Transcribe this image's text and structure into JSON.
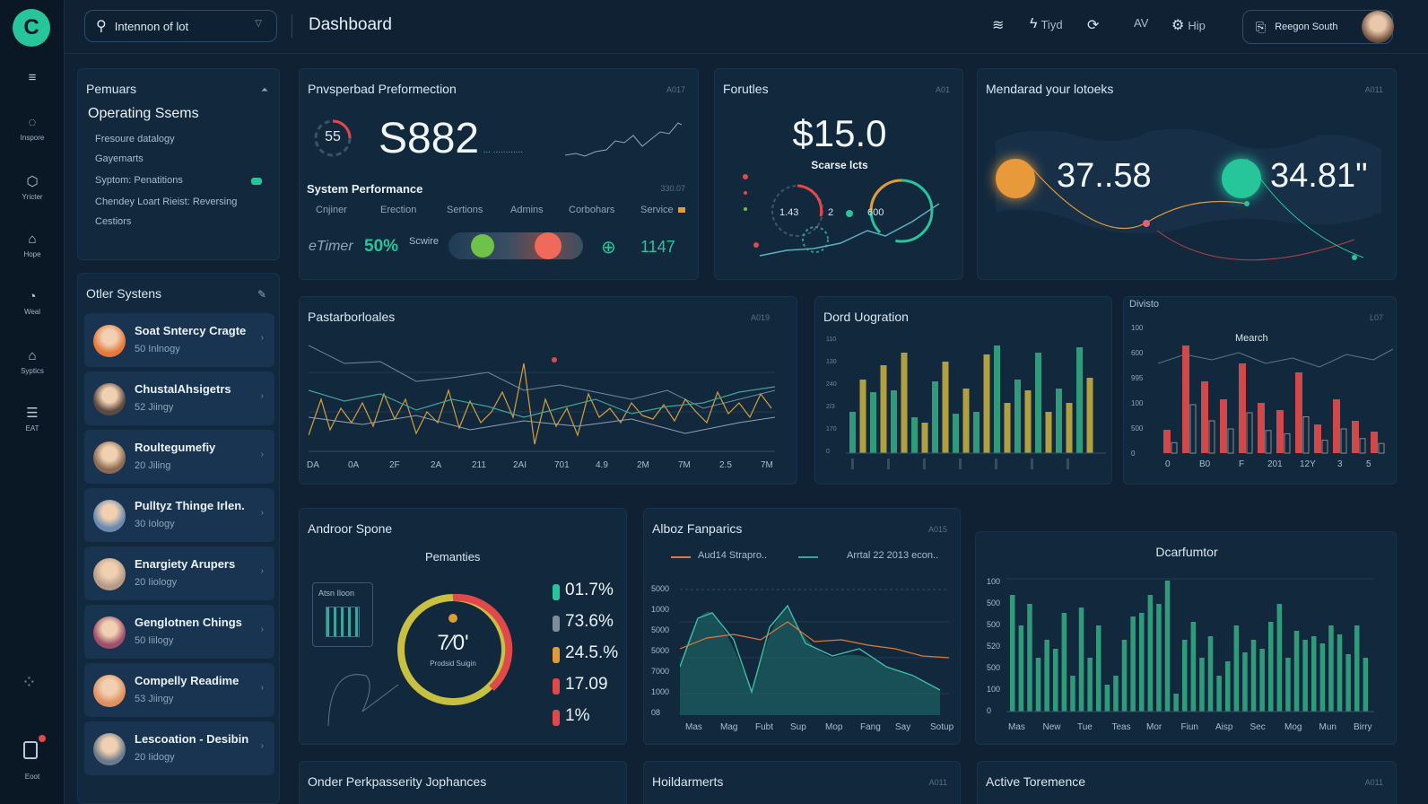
{
  "rail": {
    "logo": "C",
    "items": [
      {
        "icon": "menu-icon",
        "glyph": "≡",
        "label": ""
      },
      {
        "icon": "chat-icon",
        "glyph": "◌",
        "label": "Inspore"
      },
      {
        "icon": "badge-icon",
        "glyph": "⬡",
        "label": "Yricter"
      },
      {
        "icon": "home-icon",
        "glyph": "⌂",
        "label": "Hope"
      },
      {
        "icon": "chart-icon",
        "glyph": "◔",
        "label": "Weal"
      },
      {
        "icon": "bank-icon",
        "glyph": "⌂",
        "label": "Syptics"
      },
      {
        "icon": "list-icon",
        "glyph": "☰",
        "label": "EAT"
      }
    ],
    "grid_icon": "⁘",
    "bottom_label": "Eoot"
  },
  "topbar": {
    "search_value": "Intennon of lot",
    "title": "Dashboard",
    "items": [
      {
        "icon": "filter-icon",
        "glyph": "≋",
        "label": ""
      },
      {
        "icon": "flash-icon",
        "glyph": "ϟ",
        "label": "Tiyd"
      },
      {
        "icon": "sync-icon",
        "glyph": "⟳",
        "label": ""
      },
      {
        "icon": "text-icon",
        "glyph": "",
        "label": "AV"
      },
      {
        "icon": "gear-icon",
        "glyph": "⚙",
        "label": "Hip"
      }
    ],
    "user_name": "Reegon South"
  },
  "permanent": {
    "title": "Pemuars",
    "subtitle": "Operating Ssems",
    "lines": [
      "Fresoure datalogy",
      "Gayemarts",
      "Syptom: Penatitions",
      "Chendey Loart Rieist: Reversing",
      "Cestiors"
    ]
  },
  "other_systems": {
    "title": "Otler Systens",
    "items": [
      {
        "name": "Soat Sntercy Cragte",
        "sub": "50 Inlnogy",
        "color": "#e8783a"
      },
      {
        "name": "ChustalAhsigetrs",
        "sub": "52 Jiingy",
        "color": "#5a4a42"
      },
      {
        "name": "Roultegumefiy",
        "sub": "20 Jiling",
        "color": "#8a6a52"
      },
      {
        "name": "Pulltyz Thinge Irlen.",
        "sub": "30 Iology",
        "color": "#6a8ab0"
      },
      {
        "name": "Enargiety Arupers",
        "sub": "20 Iiology",
        "color": "#b59a88"
      },
      {
        "name": "Genglotnen Chings",
        "sub": "50 Iiilogy",
        "color": "#a0506a"
      },
      {
        "name": "Compelly Readime",
        "sub": "53 Jiingy",
        "color": "#e09060"
      },
      {
        "name": "Lescoation - Desibin",
        "sub": "20 Iidogy",
        "color": "#6a7a8a"
      }
    ]
  },
  "performance": {
    "title": "Pnvsperbad Preformection",
    "tag": "A017",
    "ring_value": "55",
    "big_value": "S882",
    "big_suffix": "... ............",
    "sub_title": "System Performance",
    "sub_tag": "330.07",
    "tabs": [
      "Cnjiner",
      "Erection",
      "Sertions",
      "Admins",
      "Corbohars",
      "Service"
    ],
    "timer_label": "eTimer",
    "timer_value": "50%",
    "scwire_label": "Scwire",
    "count": "1147"
  },
  "forutles": {
    "title": "Forutles",
    "tag": "A01",
    "value": "$15.0",
    "sub": "Scarse lcts",
    "n1": "1.43",
    "n2": "2",
    "n3": "600"
  },
  "map": {
    "title": "Mendarad your lotoeks",
    "tag": "A011",
    "v1": "37..58",
    "v2": "34.81\""
  },
  "line1": {
    "title": "Pastarborloales",
    "tag": "A019",
    "x_labels": [
      "DA",
      "0A",
      "2F",
      "2A",
      "211",
      "2AI",
      "701",
      "4.9",
      "2M",
      "7M",
      "2.5",
      "7M"
    ]
  },
  "bars1": {
    "title": "Dord Uogration",
    "y_labels": [
      "110",
      "130",
      "240",
      "2/3",
      "170",
      "0"
    ]
  },
  "bars2": {
    "title": "Divisto",
    "sub": "Mearch",
    "tag": "L07",
    "y_labels": [
      "100",
      "600",
      "995",
      "100",
      "500",
      "0"
    ],
    "x_labels": [
      "0",
      "B0",
      "F",
      "201",
      "12Y",
      "3",
      "5"
    ]
  },
  "android": {
    "title": "Androor Spone",
    "sub": "Pemanties",
    "box_label": "Atsn Iloon",
    "gauge_value": "7⁄0'",
    "gauge_label": "Prodsid Suigin",
    "stats": [
      {
        "value": "01.7%",
        "color": "#27c59a"
      },
      {
        "value": "73.6%",
        "color": "#7f8c99"
      },
      {
        "value": "24.5.%",
        "color": "#e09a3a"
      },
      {
        "value": "17.09",
        "color": "#e0484a"
      },
      {
        "value": "1%",
        "color": "#e0484a"
      }
    ]
  },
  "area": {
    "title": "Alboz Fanparics",
    "tag": "A015",
    "legend": [
      "Aud14 Strapro..",
      "Arrtal 22 2013 econ.."
    ],
    "y_labels": [
      "5000",
      "1000",
      "5000",
      "5000",
      "7000",
      "1000",
      "08"
    ],
    "x_labels": [
      "Mas",
      "Mag",
      "Fubt",
      "Sup",
      "Mop",
      "Fang",
      "Say",
      "Sotup"
    ]
  },
  "dcar": {
    "title": "Dcarfumtor",
    "y_labels": [
      "100",
      "500",
      "500",
      "520",
      "500",
      "100",
      "0"
    ],
    "x_labels": [
      "Mas",
      "New",
      "Tue",
      "Teas",
      "Mor",
      "Fiun",
      "Aisp",
      "Sec",
      "Mog",
      "Mun",
      "Birry"
    ]
  },
  "bottom": {
    "t1": "Onder Perkpasserity Jophances",
    "t2": "Hoildarmerts",
    "t2_tag": "A011",
    "t3": "Active Toremence",
    "t3_tag": "A011"
  }
}
